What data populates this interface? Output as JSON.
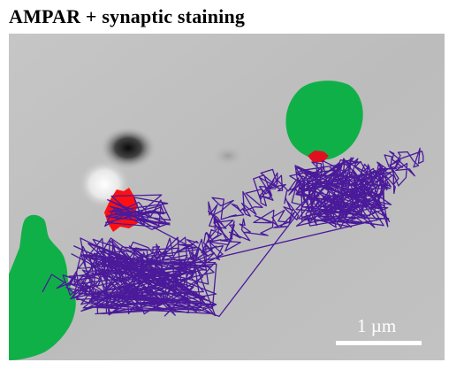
{
  "figure": {
    "title": "AMPAR + synaptic staining",
    "scale_bar_label": "1 µm"
  },
  "colors": {
    "background_gray": "#bdbdbd",
    "synaptic_staining": "#10b048",
    "trajectory": "#4a1a9a",
    "confined_region": "#ff0000",
    "scale_bar": "#ffffff"
  }
}
